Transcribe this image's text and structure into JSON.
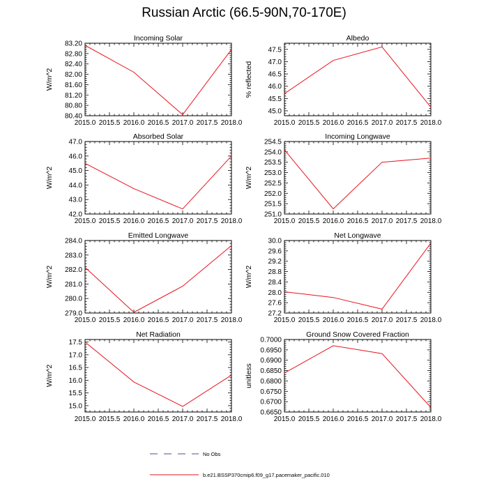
{
  "figure": {
    "title": "Russian Arctic (66.5-90N,70-170E)",
    "line_color": "#e8141e",
    "obs_color": "#4b4ba0",
    "legend": [
      {
        "label": "No Obs",
        "style": "dashed",
        "color": "#4b4ba0"
      },
      {
        "label": "b.e21.BSSP370cmip6.f09_g17.pacemaker_pacific.010",
        "style": "solid",
        "color": "#e8141e"
      }
    ]
  },
  "chart_data": [
    {
      "type": "line",
      "title": "Incoming Solar",
      "xlabel": "",
      "ylabel": "W/m^2",
      "x": [
        2015,
        2016,
        2017,
        2018
      ],
      "y": [
        83.12,
        82.08,
        80.44,
        82.96
      ],
      "xlim": [
        2015,
        2018
      ],
      "ylim": [
        80.4,
        83.2
      ],
      "ystep": 0.4,
      "ydec": 2,
      "xticks": [
        "2015.0",
        "2015.5",
        "2016.0",
        "2016.5",
        "2017.0",
        "2017.5",
        "2018.0"
      ]
    },
    {
      "type": "line",
      "title": "Albedo",
      "xlabel": "",
      "ylabel": "% reflected",
      "x": [
        2015,
        2016,
        2017,
        2018
      ],
      "y": [
        45.7,
        47.05,
        47.6,
        45.15
      ],
      "xlim": [
        2015,
        2018
      ],
      "ylim": [
        44.8,
        47.75
      ],
      "ystep": 0.5,
      "ydec": 1,
      "xticks": [
        "2015.0",
        "2015.5",
        "2016.0",
        "2016.5",
        "2017.0",
        "2017.5",
        "2018.0"
      ]
    },
    {
      "type": "line",
      "title": "Absorbed Solar",
      "xlabel": "",
      "ylabel": "W/m^2",
      "x": [
        2015,
        2016,
        2017,
        2018
      ],
      "y": [
        45.5,
        43.75,
        42.35,
        46.0
      ],
      "xlim": [
        2015,
        2018
      ],
      "ylim": [
        42.0,
        47.0
      ],
      "ystep": 1,
      "ydec": 1,
      "xticks": [
        "2015.0",
        "2015.5",
        "2016.0",
        "2016.5",
        "2017.0",
        "2017.5",
        "2018.0"
      ]
    },
    {
      "type": "line",
      "title": "Incoming Longwave",
      "xlabel": "",
      "ylabel": "W/m^2",
      "x": [
        2015,
        2016,
        2017,
        2018
      ],
      "y": [
        254.1,
        251.25,
        253.5,
        253.7
      ],
      "xlim": [
        2015,
        2018
      ],
      "ylim": [
        251.0,
        254.5
      ],
      "ystep": 0.5,
      "ydec": 1,
      "xticks": [
        "2015.0",
        "2015.5",
        "2016.0",
        "2016.5",
        "2017.0",
        "2017.5",
        "2018.0"
      ]
    },
    {
      "type": "line",
      "title": "Emitted Longwave",
      "xlabel": "",
      "ylabel": "W/m^2",
      "x": [
        2015,
        2016,
        2017,
        2018
      ],
      "y": [
        282.15,
        279.05,
        280.85,
        283.65
      ],
      "xlim": [
        2015,
        2018
      ],
      "ylim": [
        279.0,
        284.0
      ],
      "ystep": 1,
      "ydec": 1,
      "xticks": [
        "2015.0",
        "2015.5",
        "2016.0",
        "2016.5",
        "2017.0",
        "2017.5",
        "2018.0"
      ]
    },
    {
      "type": "line",
      "title": "Net Longwave",
      "xlabel": "",
      "ylabel": "W/m^2",
      "x": [
        2015,
        2016,
        2017,
        2018
      ],
      "y": [
        28.02,
        27.8,
        27.35,
        29.9
      ],
      "xlim": [
        2015,
        2018
      ],
      "ylim": [
        27.2,
        30.0
      ],
      "ystep": 0.4,
      "ydec": 1,
      "xticks": [
        "2015.0",
        "2015.5",
        "2016.0",
        "2016.5",
        "2017.0",
        "2017.5",
        "2018.0"
      ]
    },
    {
      "type": "line",
      "title": "Net Radiation",
      "xlabel": "",
      "ylabel": "W/m^2",
      "x": [
        2015,
        2016,
        2017,
        2018
      ],
      "y": [
        17.5,
        15.93,
        14.97,
        16.2
      ],
      "xlim": [
        2015,
        2018
      ],
      "ylim": [
        14.75,
        17.6
      ],
      "ystep": 0.5,
      "ydec": 1,
      "xticks": [
        "2015.0",
        "2015.5",
        "2016.0",
        "2016.5",
        "2017.0",
        "2017.5",
        "2018.0"
      ]
    },
    {
      "type": "line",
      "title": "Ground Snow Covered Fraction",
      "xlabel": "",
      "ylabel": "unitless",
      "x": [
        2015,
        2016,
        2017,
        2018
      ],
      "y": [
        0.6838,
        0.697,
        0.6932,
        0.6672
      ],
      "xlim": [
        2015,
        2018
      ],
      "ylim": [
        0.665,
        0.7
      ],
      "ystep": 0.005,
      "ydec": 4,
      "xticks": [
        "2015.0",
        "2015.5",
        "2016.0",
        "2016.5",
        "2017.0",
        "2017.5",
        "2018.0"
      ]
    }
  ]
}
